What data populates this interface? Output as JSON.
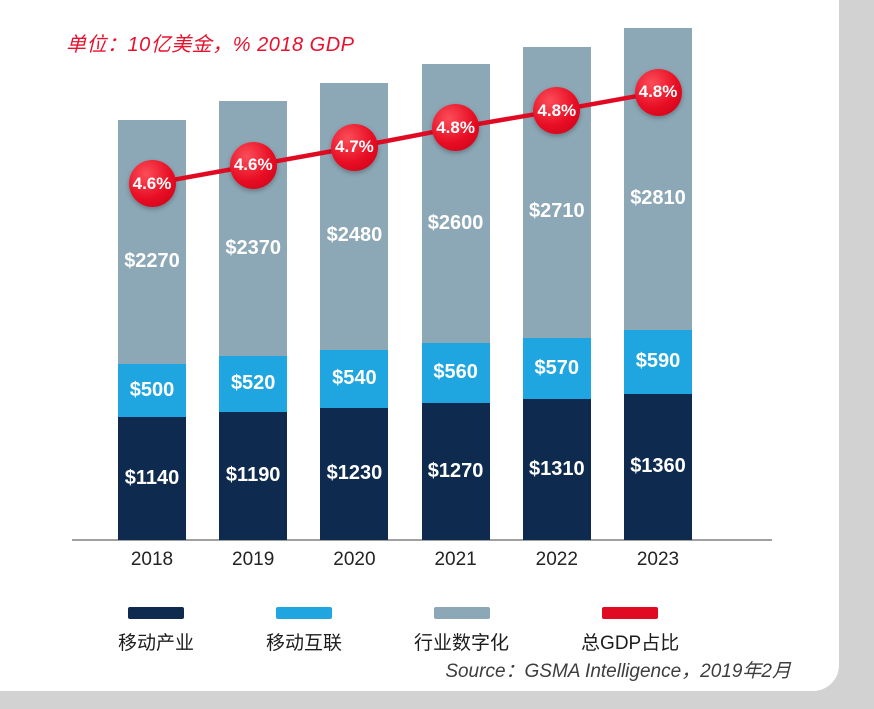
{
  "chart_data": {
    "type": "bar",
    "stacked": true,
    "unit_label": "单位：10亿美金，% 2018 GDP",
    "source": "Source：GSMA Intelligence，2019年2月",
    "categories": [
      "2018",
      "2019",
      "2020",
      "2021",
      "2022",
      "2023"
    ],
    "series": [
      {
        "name": "移动产业",
        "color": "#0e2a4e",
        "values": [
          1140,
          1190,
          1230,
          1270,
          1310,
          1360
        ],
        "value_labels": [
          "$1140",
          "$1190",
          "$1230",
          "$1270",
          "$1310",
          "$1360"
        ]
      },
      {
        "name": "移动互联",
        "color": "#1fa6e0",
        "values": [
          500,
          520,
          540,
          560,
          570,
          590
        ],
        "value_labels": [
          "$500",
          "$520",
          "$540",
          "$560",
          "$570",
          "$590"
        ]
      },
      {
        "name": "行业数字化",
        "color": "#8ca7b5",
        "values": [
          2270,
          2370,
          2480,
          2600,
          2710,
          2810
        ],
        "value_labels": [
          "$2270",
          "$2370",
          "$2480",
          "$2600",
          "$2710",
          "$2810"
        ]
      }
    ],
    "line_series": {
      "name": "总GDP占比",
      "color": "#e00b22",
      "values": [
        4.6,
        4.6,
        4.7,
        4.8,
        4.8,
        4.8
      ],
      "value_labels": [
        "4.6%",
        "4.6%",
        "4.7%",
        "4.8%",
        "4.8%",
        "4.8%"
      ]
    },
    "xlabel": "",
    "ylabel": "",
    "ylim": [
      0,
      4900
    ],
    "grid": false,
    "legend_position": "bottom"
  }
}
